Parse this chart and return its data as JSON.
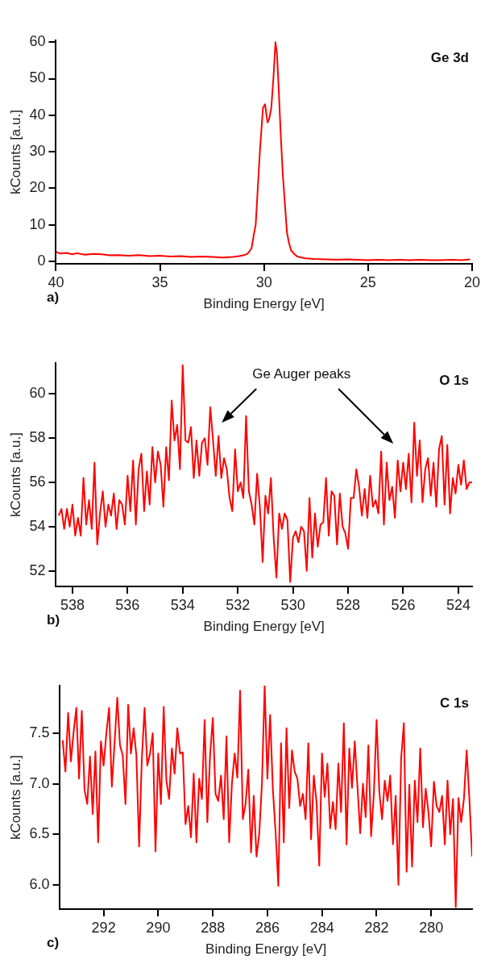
{
  "chart_data": [
    {
      "type": "line",
      "title": "Ge 3d",
      "xlabel": "Binding Energy [eV]",
      "ylabel": "kCounts [a.u.]",
      "annotations": [
        "a)"
      ],
      "xlim": [
        40,
        20
      ],
      "xticks": [
        40,
        35,
        30,
        25,
        20
      ],
      "ylim": [
        -0.7,
        60.5
      ],
      "yticks": [
        0,
        10,
        20,
        30,
        40,
        50,
        60
      ],
      "marker": "none",
      "line_style": "solid",
      "series": [
        {
          "color": "#ff0000",
          "x": [
            40,
            39.8,
            39.5,
            39.2,
            39,
            38.6,
            38.2,
            37.8,
            37.4,
            37,
            36.5,
            36,
            35.5,
            35,
            34.5,
            34,
            33.5,
            33,
            32.5,
            32,
            31.5,
            31.2,
            31,
            30.8,
            30.6,
            30.5,
            30.4,
            30.3,
            30.2,
            30.1,
            30.05,
            29.95,
            29.88,
            29.83,
            29.75,
            29.65,
            29.55,
            29.45,
            29.38,
            29.3,
            29.2,
            29.1,
            29.0,
            28.9,
            28.8,
            28.7,
            28.55,
            28.4,
            28.2,
            28,
            27.6,
            27,
            26.5,
            26,
            25.5,
            25,
            24.5,
            24,
            23.5,
            23,
            22.5,
            22,
            21.5,
            21,
            20.5,
            20.1
          ],
          "values": [
            2.6,
            2.1,
            2.3,
            1.9,
            2.2,
            1.8,
            2.0,
            1.9,
            1.6,
            1.7,
            1.5,
            1.7,
            1.4,
            1.5,
            1.3,
            1.4,
            1.2,
            1.3,
            1.2,
            1.0,
            1.2,
            1.4,
            1.6,
            2.0,
            3.5,
            7,
            10,
            20,
            30,
            38,
            42,
            43,
            40,
            38,
            39,
            42,
            50,
            60,
            57,
            48,
            35,
            24,
            16,
            8,
            5,
            3,
            2,
            1.3,
            1.0,
            0.8,
            0.6,
            0.5,
            0.4,
            0.5,
            0.4,
            0.3,
            0.4,
            0.3,
            0.4,
            0.3,
            0.4,
            0.3,
            0.3,
            0.4,
            0.3,
            0.5
          ]
        }
      ]
    },
    {
      "type": "line",
      "title": "O 1s",
      "xlabel": "Binding Energy [eV]",
      "ylabel": "kCounts [a.u.]",
      "annotations": [
        "b)",
        "Ge Auger peaks"
      ],
      "xlim": [
        538.6,
        523.5
      ],
      "xticks": [
        538,
        536,
        534,
        532,
        530,
        528,
        526,
        524
      ],
      "ylim": [
        51.3,
        61.4
      ],
      "yticks": [
        52,
        54,
        56,
        58,
        60
      ],
      "marker": "none",
      "line_style": "solid",
      "series": [
        {
          "color": "#ff0000",
          "x": [
            538.5,
            538.4,
            538.3,
            538.2,
            538.1,
            538.0,
            537.9,
            537.8,
            537.7,
            537.6,
            537.5,
            537.4,
            537.3,
            537.2,
            537.1,
            537.0,
            536.9,
            536.8,
            536.7,
            536.6,
            536.5,
            536.4,
            536.3,
            536.2,
            536.1,
            536.0,
            535.9,
            535.8,
            535.7,
            535.6,
            535.5,
            535.4,
            535.3,
            535.2,
            535.1,
            535.0,
            534.9,
            534.8,
            534.7,
            534.6,
            534.5,
            534.4,
            534.3,
            534.2,
            534.1,
            534.0,
            533.9,
            533.8,
            533.7,
            533.6,
            533.5,
            533.4,
            533.3,
            533.2,
            533.1,
            533.0,
            532.9,
            532.8,
            532.7,
            532.6,
            532.5,
            532.4,
            532.3,
            532.2,
            532.1,
            532.0,
            531.9,
            531.8,
            531.7,
            531.6,
            531.5,
            531.4,
            531.3,
            531.2,
            531.1,
            531.0,
            530.9,
            530.8,
            530.7,
            530.6,
            530.5,
            530.4,
            530.3,
            530.2,
            530.1,
            530.0,
            529.9,
            529.8,
            529.7,
            529.6,
            529.5,
            529.4,
            529.3,
            529.2,
            529.1,
            529.0,
            528.9,
            528.8,
            528.7,
            528.6,
            528.5,
            528.4,
            528.3,
            528.2,
            528.1,
            528.0,
            527.9,
            527.8,
            527.7,
            527.6,
            527.5,
            527.4,
            527.3,
            527.2,
            527.1,
            527.0,
            526.9,
            526.8,
            526.7,
            526.6,
            526.5,
            526.4,
            526.3,
            526.2,
            526.1,
            526.0,
            525.9,
            525.8,
            525.7,
            525.6,
            525.5,
            525.4,
            525.3,
            525.2,
            525.1,
            525.0,
            524.9,
            524.8,
            524.7,
            524.6,
            524.5,
            524.4,
            524.3,
            524.2,
            524.1,
            524.0,
            523.9,
            523.8,
            523.7,
            523.6,
            523.5
          ],
          "values": [
            54.5,
            54.8,
            53.9,
            54.8,
            54.0,
            55.0,
            53.6,
            54.4,
            53.6,
            56.2,
            54.1,
            55.2,
            53.9,
            56.9,
            53.2,
            54.6,
            55.6,
            54.0,
            55.0,
            54.5,
            55.5,
            53.9,
            55.2,
            55.0,
            54.1,
            56.3,
            54.7,
            57.0,
            54.1,
            56.6,
            57.3,
            54.7,
            56.5,
            55.0,
            57.6,
            56.0,
            57.4,
            56.8,
            54.9,
            57.6,
            56.1,
            59.7,
            57.9,
            58.6,
            56.6,
            61.3,
            57.9,
            57.8,
            58.5,
            56.2,
            57.9,
            56.3,
            57.8,
            58.0,
            56.8,
            59.4,
            57.9,
            56.3,
            58.1,
            56.2,
            57.1,
            56.6,
            55.3,
            54.7,
            57.5,
            55.6,
            56.0,
            55.3,
            59.0,
            55.6,
            55.0,
            54.1,
            56.4,
            54.9,
            52.4,
            55.4,
            54.6,
            56.2,
            53.5,
            51.7,
            54.6,
            53.9,
            54.6,
            54.3,
            51.5,
            53.5,
            53.8,
            53.3,
            54.0,
            53.8,
            52.0,
            55.3,
            52.6,
            54.6,
            53.1,
            54.1,
            54.2,
            56.2,
            53.6,
            55.6,
            55.4,
            53.2,
            55.5,
            54.0,
            53.7,
            53.0,
            55.3,
            55.3,
            56.6,
            55.8,
            54.5,
            55.7,
            54.4,
            56.3,
            54.9,
            55.2,
            54.6,
            57.4,
            54.1,
            56.9,
            55.2,
            55.8,
            54.4,
            57.0,
            55.6,
            56.9,
            55.7,
            57.3,
            55.1,
            58.7,
            56.3,
            57.9,
            55.1,
            56.6,
            57.1,
            55.4,
            56.9,
            54.9,
            57.5,
            58.1,
            55.0,
            57.7,
            54.6,
            56.2,
            55.5,
            56.8,
            55.9,
            57.0,
            55.7,
            56.0,
            56.0
          ]
        }
      ]
    },
    {
      "type": "line",
      "title": "C 1s",
      "xlabel": "Binding Energy [eV]",
      "ylabel": "kCounts [a.u.]",
      "annotations": [
        "c)"
      ],
      "xlim": [
        293.6,
        278.5
      ],
      "xticks": [
        292,
        290,
        288,
        286,
        284,
        282,
        280
      ],
      "ylim": [
        5.76,
        7.97
      ],
      "yticks": [
        {
          "value": 6,
          "label": "6.0"
        },
        6.5,
        {
          "value": 7,
          "label": "7.0"
        },
        7.5
      ],
      "marker": "none",
      "line_style": "solid",
      "series": [
        {
          "color": "#ff0000",
          "x": [
            293.5,
            293.4,
            293.3,
            293.2,
            293.1,
            293.0,
            292.9,
            292.8,
            292.7,
            292.6,
            292.5,
            292.4,
            292.3,
            292.2,
            292.1,
            292.0,
            291.9,
            291.8,
            291.7,
            291.6,
            291.5,
            291.4,
            291.3,
            291.2,
            291.1,
            291.0,
            290.9,
            290.8,
            290.7,
            290.6,
            290.5,
            290.4,
            290.3,
            290.2,
            290.1,
            290.0,
            289.9,
            289.8,
            289.7,
            289.6,
            289.5,
            289.4,
            289.3,
            289.2,
            289.1,
            289.0,
            288.9,
            288.8,
            288.7,
            288.6,
            288.5,
            288.4,
            288.3,
            288.2,
            288.1,
            288.0,
            287.9,
            287.8,
            287.7,
            287.6,
            287.5,
            287.4,
            287.3,
            287.2,
            287.1,
            287.0,
            286.9,
            286.8,
            286.7,
            286.6,
            286.5,
            286.4,
            286.3,
            286.2,
            286.1,
            286.0,
            285.9,
            285.8,
            285.7,
            285.6,
            285.5,
            285.4,
            285.3,
            285.2,
            285.1,
            285.0,
            284.9,
            284.8,
            284.7,
            284.6,
            284.5,
            284.4,
            284.3,
            284.2,
            284.1,
            284.0,
            283.9,
            283.8,
            283.7,
            283.6,
            283.5,
            283.4,
            283.3,
            283.2,
            283.1,
            283.0,
            282.9,
            282.8,
            282.7,
            282.6,
            282.5,
            282.4,
            282.3,
            282.2,
            282.1,
            282.0,
            281.9,
            281.8,
            281.7,
            281.6,
            281.5,
            281.4,
            281.3,
            281.2,
            281.1,
            281.0,
            280.9,
            280.8,
            280.7,
            280.6,
            280.5,
            280.4,
            280.3,
            280.2,
            280.1,
            280.0,
            279.9,
            279.8,
            279.7,
            279.6,
            279.5,
            279.4,
            279.3,
            279.2,
            279.1,
            279.0,
            278.9,
            278.8,
            278.7,
            278.6,
            278.5
          ],
          "values": [
            7.43,
            7.12,
            7.7,
            7.22,
            7.51,
            7.75,
            7.05,
            7.72,
            6.94,
            6.8,
            7.27,
            6.7,
            7.32,
            6.42,
            7.42,
            7.18,
            7.5,
            7.75,
            6.97,
            7.4,
            7.85,
            7.38,
            7.28,
            6.8,
            7.78,
            7.3,
            7.55,
            7.28,
            6.38,
            7.25,
            7.75,
            7.18,
            7.3,
            7.5,
            6.33,
            7.3,
            6.8,
            7.76,
            7.03,
            6.85,
            7.35,
            7.1,
            7.55,
            7.3,
            7.31,
            6.6,
            6.78,
            6.47,
            7.1,
            6.42,
            7.05,
            6.85,
            7.63,
            6.62,
            7.28,
            7.65,
            6.9,
            6.83,
            7.08,
            6.65,
            7.47,
            6.42,
            7.0,
            7.3,
            7.06,
            7.92,
            6.65,
            6.8,
            7.14,
            6.32,
            6.88,
            6.28,
            6.5,
            7.0,
            7.97,
            7.05,
            7.68,
            6.95,
            6.52,
            5.99,
            7.4,
            6.42,
            7.55,
            6.76,
            7.33,
            7.12,
            7.05,
            6.78,
            6.9,
            6.65,
            7.4,
            6.45,
            7.08,
            6.82,
            6.19,
            7.3,
            6.87,
            7.2,
            6.56,
            6.82,
            6.55,
            7.2,
            6.72,
            7.6,
            6.4,
            7.35,
            6.96,
            7.42,
            6.97,
            6.51,
            7.0,
            6.67,
            7.38,
            6.48,
            6.9,
            7.63,
            6.92,
            6.65,
            7.03,
            6.83,
            7.08,
            6.4,
            6.88,
            6.0,
            7.25,
            7.6,
            6.13,
            6.99,
            6.18,
            7.03,
            6.62,
            7.35,
            6.57,
            6.95,
            6.72,
            6.38,
            7.02,
            6.78,
            6.72,
            6.88,
            6.4,
            7.03,
            6.5,
            6.85,
            5.78,
            6.86,
            6.62,
            6.85,
            7.33,
            6.85,
            6.28
          ]
        }
      ]
    }
  ]
}
